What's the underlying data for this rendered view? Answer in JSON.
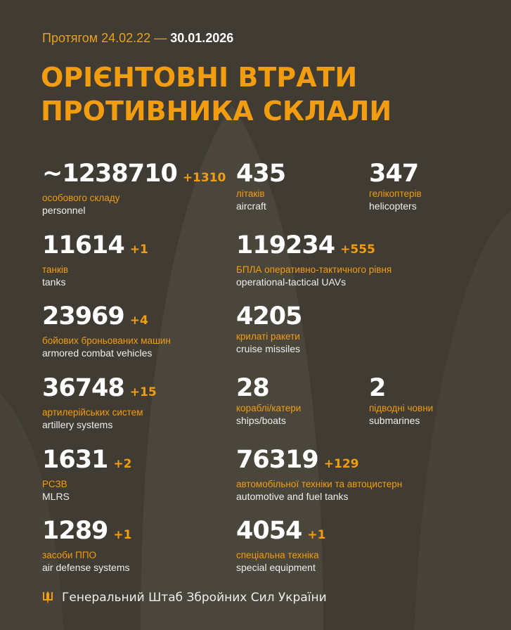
{
  "header": {
    "period_prefix": "Протягом 24.02.22 —",
    "period_end": "30.01.2026",
    "title_line1": "ОРІЄНТОВНІ ВТРАТИ",
    "title_line2": "ПРОТИВНИКА СКЛАЛИ"
  },
  "stats": [
    {
      "value": "~1238710",
      "delta": "+1310",
      "uk": "особового складу",
      "en": "personnel"
    },
    {
      "value": "435",
      "delta": "",
      "uk": "літаків",
      "en": "aircraft"
    },
    {
      "value": "347",
      "delta": "",
      "uk": "гелікоптерів",
      "en": "helicopters"
    },
    {
      "value": "11614",
      "delta": "+1",
      "uk": "танків",
      "en": "tanks"
    },
    {
      "value": "119234",
      "delta": "+555",
      "uk": "БПЛА оперативно-тактичного рівня",
      "en": "operational-tactical UAVs"
    },
    {
      "value": "23969",
      "delta": "+4",
      "uk": "бойових броньованих машин",
      "en": "armored combat vehicles"
    },
    {
      "value": "4205",
      "delta": "",
      "uk": "крилаті ракети",
      "en": "cruise missiles"
    },
    {
      "value": "36748",
      "delta": "+15",
      "uk": "артилерійських систем",
      "en": "artillery systems"
    },
    {
      "value": "28",
      "delta": "",
      "uk": "кораблі/катери",
      "en": "ships/boats"
    },
    {
      "value": "2",
      "delta": "",
      "uk": "підводні човни",
      "en": "submarines"
    },
    {
      "value": "1631",
      "delta": "+2",
      "uk": "РСЗВ",
      "en": "MLRS"
    },
    {
      "value": "76319",
      "delta": "+129",
      "uk": "автомобільної техніки та автоцистерн",
      "en": "automotive and fuel tanks"
    },
    {
      "value": "1289",
      "delta": "+1",
      "uk": "засоби ППО",
      "en": "air defense systems"
    },
    {
      "value": "4054",
      "delta": "+1",
      "uk": "спеціальна техніка",
      "en": "special equipment"
    }
  ],
  "footer": {
    "org": "Генеральний Штаб Збройних Сил України",
    "icon": "trident-icon"
  },
  "colors": {
    "accent": "#f29d10",
    "background": "#403c33"
  }
}
